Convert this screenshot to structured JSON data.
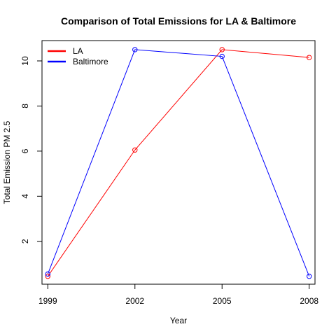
{
  "chart_data": {
    "type": "line",
    "title": "Comparison of Total Emissions for LA & Baltimore",
    "xlabel": "Year",
    "ylabel": "Total Emission PM 2.5",
    "categories": [
      "1999",
      "2002",
      "2005",
      "2008"
    ],
    "x": [
      1999,
      2002,
      2005,
      2008
    ],
    "xlim": [
      1998.8,
      2008.2
    ],
    "ylim": [
      0.1,
      10.9
    ],
    "yticks": [
      2,
      4,
      6,
      8,
      10
    ],
    "grid": false,
    "legend_position": "top-left",
    "series": [
      {
        "name": "LA",
        "color": "#ff0000",
        "values": [
          0.45,
          6.05,
          10.5,
          10.15
        ]
      },
      {
        "name": "Baltimore",
        "color": "#0000ff",
        "values": [
          0.55,
          10.5,
          10.2,
          0.45
        ]
      }
    ]
  }
}
